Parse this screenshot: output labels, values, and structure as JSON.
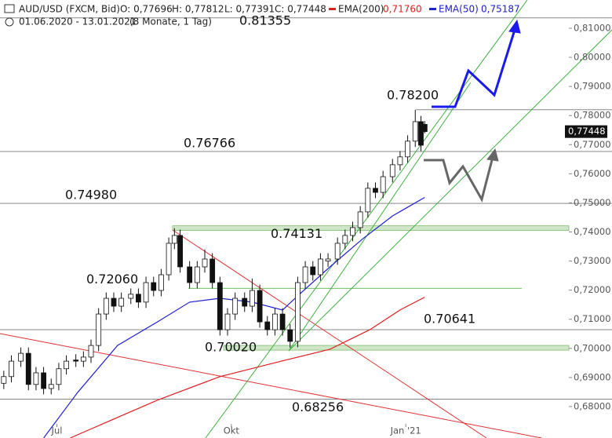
{
  "chart_data": {
    "type": "candlestick",
    "header": {
      "symbol": "AUD/USD (FXCM, Bid)",
      "open": "O: 0,77696",
      "high": "H: 0,77812",
      "low": "L: 0,77391",
      "close": "C: 0,77448",
      "range": "01.06.2020 - 13.01.2021",
      "span": "(8 Monate, 1 Tag)"
    },
    "x": [
      2,
      6,
      11,
      15,
      19,
      23,
      27,
      31,
      35,
      40,
      44,
      48,
      52,
      56,
      60,
      64,
      69,
      73,
      77,
      81,
      85,
      89,
      92,
      95,
      100,
      104,
      108,
      112,
      116,
      120,
      124,
      129,
      133,
      137,
      141,
      145,
      149,
      153,
      157,
      161,
      165,
      169,
      173,
      178,
      182,
      186,
      190,
      194,
      198,
      202,
      207,
      211,
      215,
      219,
      222,
      224
    ],
    "open": [
      0.688,
      0.6903,
      0.6956,
      0.6983,
      0.6876,
      0.6916,
      0.6862,
      0.6876,
      0.693,
      0.696,
      0.6956,
      0.697,
      0.701,
      0.7118,
      0.7172,
      0.7145,
      0.7172,
      0.7186,
      0.7159,
      0.7226,
      0.7199,
      0.7253,
      0.7361,
      0.7388,
      0.728,
      0.7226,
      0.728,
      0.7307,
      0.7226,
      0.7064,
      0.7118,
      0.7172,
      0.7145,
      0.7199,
      0.7091,
      0.7064,
      0.7118,
      0.7064,
      0.7024,
      0.7226,
      0.728,
      0.7253,
      0.73,
      0.7307,
      0.7361,
      0.7388,
      0.7415,
      0.7469,
      0.755,
      0.7536,
      0.759,
      0.7631,
      0.7658,
      0.7712,
      0.7779,
      0.77696
    ],
    "high": [
      0.6923,
      0.6976,
      0.7003,
      0.7003,
      0.6936,
      0.6936,
      0.6896,
      0.695,
      0.6976,
      0.698,
      0.699,
      0.703,
      0.7138,
      0.7192,
      0.7192,
      0.7192,
      0.7206,
      0.7206,
      0.7246,
      0.7246,
      0.7273,
      0.7381,
      0.7413,
      0.7408,
      0.73,
      0.73,
      0.734,
      0.7327,
      0.7246,
      0.7138,
      0.7192,
      0.7192,
      0.724,
      0.7219,
      0.7111,
      0.7138,
      0.7138,
      0.7084,
      0.7246,
      0.73,
      0.73,
      0.7327,
      0.7327,
      0.7381,
      0.7408,
      0.7435,
      0.7489,
      0.757,
      0.757,
      0.761,
      0.7651,
      0.7678,
      0.7732,
      0.782,
      0.7799,
      0.77812
    ],
    "low": [
      0.686,
      0.6883,
      0.6936,
      0.6856,
      0.6856,
      0.6842,
      0.6842,
      0.6856,
      0.691,
      0.6936,
      0.6936,
      0.695,
      0.699,
      0.7098,
      0.7125,
      0.7125,
      0.7152,
      0.7139,
      0.7139,
      0.7179,
      0.7179,
      0.7233,
      0.7341,
      0.726,
      0.7206,
      0.7206,
      0.726,
      0.7206,
      0.7044,
      0.7044,
      0.7098,
      0.7125,
      0.7125,
      0.7071,
      0.7044,
      0.7044,
      0.7044,
      0.7002,
      0.7004,
      0.7206,
      0.7233,
      0.7233,
      0.728,
      0.7287,
      0.7341,
      0.7368,
      0.7395,
      0.7449,
      0.7516,
      0.7516,
      0.757,
      0.7611,
      0.7638,
      0.7692,
      0.7678,
      0.77391
    ],
    "close": [
      0.6903,
      0.6956,
      0.6983,
      0.6876,
      0.6916,
      0.6862,
      0.6876,
      0.693,
      0.6956,
      0.6956,
      0.697,
      0.701,
      0.7118,
      0.7172,
      0.7145,
      0.7172,
      0.7186,
      0.7159,
      0.7226,
      0.7199,
      0.7253,
      0.7361,
      0.7388,
      0.728,
      0.7226,
      0.728,
      0.7307,
      0.7226,
      0.7064,
      0.7118,
      0.7172,
      0.7145,
      0.7199,
      0.7091,
      0.7064,
      0.7118,
      0.7064,
      0.7024,
      0.7226,
      0.728,
      0.7253,
      0.7307,
      0.7307,
      0.7361,
      0.7388,
      0.7415,
      0.7469,
      0.755,
      0.7536,
      0.759,
      0.7631,
      0.7658,
      0.7712,
      0.7779,
      0.7698,
      0.77448
    ],
    "last_label": "0,77448",
    "series": [
      {
        "name": "EMA(200)",
        "color": "#e02020",
        "last_label": "0,71760",
        "x": [
          37,
          83,
          116,
          149,
          174,
          195,
          211,
          224
        ],
        "values": [
          0.6692,
          0.6822,
          0.6903,
          0.6957,
          0.6997,
          0.7064,
          0.7132,
          0.7176
        ]
      },
      {
        "name": "EMA(50)",
        "color": "#2020d0",
        "last_label": "0,75187",
        "x": [
          23,
          41,
          62,
          83,
          100,
          116,
          133,
          149,
          158,
          174,
          191,
          207,
          224
        ],
        "values": [
          0.6692,
          0.6849,
          0.701,
          0.7091,
          0.7159,
          0.7172,
          0.7159,
          0.7132,
          0.7186,
          0.728,
          0.7375,
          0.7455,
          0.75187
        ]
      }
    ],
    "levels": [
      {
        "value": 0.81355,
        "label": "0.81355"
      },
      {
        "value": 0.782,
        "label": "0.78200"
      },
      {
        "value": 0.76766,
        "label": "0.76766"
      },
      {
        "value": 0.7498,
        "label": "0.74980"
      },
      {
        "value": 0.74131,
        "label": "0.74131"
      },
      {
        "value": 0.7206,
        "label": "0.72060"
      },
      {
        "value": 0.70641,
        "label": "0.70641"
      },
      {
        "value": 0.7002,
        "label": "0.70020"
      },
      {
        "value": 0.68256,
        "label": "0.68256"
      }
    ],
    "xlim": [
      0,
      300
    ],
    "xticks": [
      {
        "value": 30,
        "label": "Jul"
      },
      {
        "value": 122,
        "label": "Okt"
      },
      {
        "value": 214,
        "label": "Jan '21"
      }
    ],
    "ylim": [
      0.6692,
      0.8197
    ],
    "yticks": [
      {
        "value": 0.68,
        "label": "0,68000"
      },
      {
        "value": 0.69,
        "label": "0,69000"
      },
      {
        "value": 0.7,
        "label": "0,70000"
      },
      {
        "value": 0.71,
        "label": "0,71000"
      },
      {
        "value": 0.72,
        "label": "0,72000"
      },
      {
        "value": 0.73,
        "label": "0,73000"
      },
      {
        "value": 0.74,
        "label": "0,74000"
      },
      {
        "value": 0.75,
        "label": "0,75000"
      },
      {
        "value": 0.76,
        "label": "0,76000"
      },
      {
        "value": 0.77,
        "label": "0,77000"
      },
      {
        "value": 0.78,
        "label": "0,78000"
      },
      {
        "value": 0.79,
        "label": "0,79000"
      },
      {
        "value": 0.8,
        "label": "0,80000"
      },
      {
        "value": 0.81,
        "label": "0,81000"
      }
    ]
  }
}
